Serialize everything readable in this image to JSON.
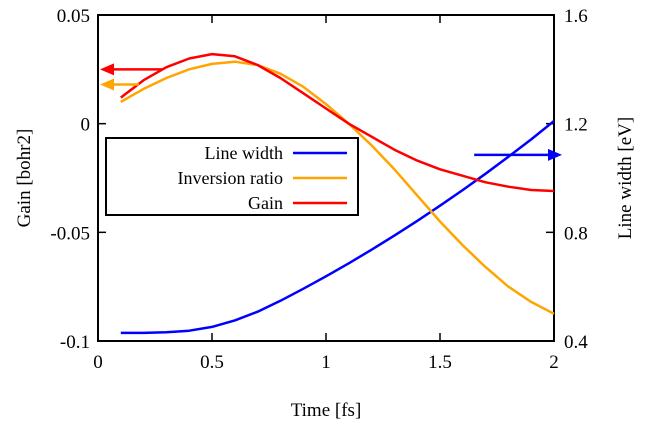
{
  "chart_data": {
    "type": "line",
    "title": "",
    "xlabel": "Time [fs]",
    "ylabel_left": "Gain [bohr2]",
    "ylabel_right": "Line width [eV]",
    "xlim": [
      0,
      2
    ],
    "ylim_left": [
      -0.1,
      0.05
    ],
    "ylim_right": [
      0.4,
      1.6
    ],
    "x_ticks": [
      "0",
      "0.5",
      "1",
      "1.5",
      "2"
    ],
    "y_left_ticks": [
      "-0.1",
      "-0.05",
      "0",
      "0.05"
    ],
    "y_right_ticks": [
      "0.4",
      "0.8",
      "1.2",
      "1.6"
    ],
    "legend_position": "middle-left",
    "grid": false,
    "series": [
      {
        "name": "Line width",
        "axis": "right",
        "color": "#0000ff",
        "x": [
          0.1,
          0.2,
          0.3,
          0.4,
          0.5,
          0.6,
          0.7,
          0.8,
          0.9,
          1.0,
          1.1,
          1.2,
          1.3,
          1.4,
          1.5,
          1.6,
          1.7,
          1.8,
          1.9,
          2.0
        ],
        "values": [
          0.43,
          0.43,
          0.432,
          0.438,
          0.452,
          0.476,
          0.508,
          0.548,
          0.592,
          0.638,
          0.686,
          0.736,
          0.788,
          0.842,
          0.898,
          0.956,
          1.016,
          1.078,
          1.142,
          1.21
        ]
      },
      {
        "name": "Inversion ratio",
        "axis": "left",
        "color": "#ffa500",
        "x": [
          0.1,
          0.2,
          0.3,
          0.4,
          0.5,
          0.6,
          0.7,
          0.8,
          0.9,
          1.0,
          1.1,
          1.2,
          1.3,
          1.4,
          1.5,
          1.6,
          1.7,
          1.8,
          1.9,
          2.0
        ],
        "values": [
          0.01,
          0.016,
          0.021,
          0.025,
          0.0275,
          0.0285,
          0.027,
          0.023,
          0.017,
          0.009,
          0.0,
          -0.01,
          -0.021,
          -0.033,
          -0.045,
          -0.056,
          -0.066,
          -0.075,
          -0.082,
          -0.0875
        ]
      },
      {
        "name": "Gain",
        "axis": "left",
        "color": "#ff0000",
        "x": [
          0.1,
          0.2,
          0.3,
          0.4,
          0.5,
          0.6,
          0.7,
          0.8,
          0.9,
          1.0,
          1.1,
          1.2,
          1.3,
          1.4,
          1.5,
          1.6,
          1.7,
          1.8,
          1.9,
          2.0
        ],
        "values": [
          0.012,
          0.02,
          0.026,
          0.03,
          0.032,
          0.031,
          0.027,
          0.021,
          0.014,
          0.007,
          0.0,
          -0.006,
          -0.012,
          -0.017,
          -0.021,
          -0.024,
          -0.027,
          -0.029,
          -0.0305,
          -0.031
        ]
      }
    ],
    "annotations": [
      {
        "type": "arrow",
        "points_to": "left-axis",
        "color": "#ff0000"
      },
      {
        "type": "arrow",
        "points_to": "left-axis",
        "color": "#ffa500"
      },
      {
        "type": "arrow",
        "points_to": "right-axis",
        "color": "#0000ff"
      }
    ]
  }
}
